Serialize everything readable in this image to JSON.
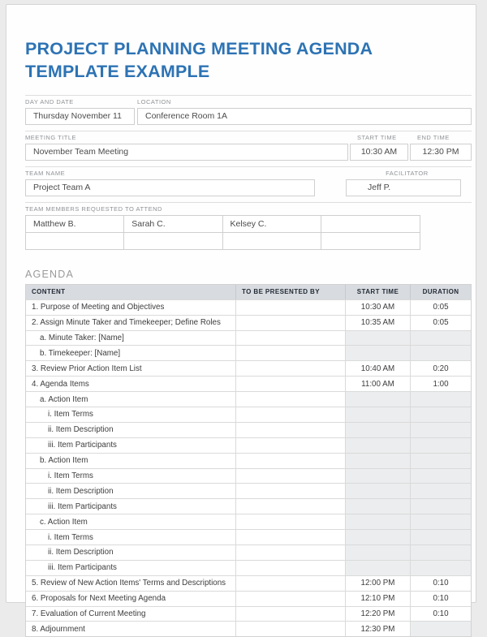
{
  "page": {
    "title_line1": "PROJECT PLANNING MEETING AGENDA",
    "title_line2": "TEMPLATE EXAMPLE",
    "accent_color": "#2d73b4",
    "header_row_color": "#d8dbe0",
    "shaded_cell_color": "#ebedee"
  },
  "fields": {
    "day_and_date": {
      "label": "DAY AND DATE",
      "value": "Thursday November 11"
    },
    "location": {
      "label": "LOCATION",
      "value": "Conference Room 1A"
    },
    "meeting_title": {
      "label": "MEETING TITLE",
      "value": "November Team Meeting"
    },
    "start_time": {
      "label": "START TIME",
      "value": "10:30 AM"
    },
    "end_time": {
      "label": "END TIME",
      "value": "12:30 PM"
    },
    "team_name": {
      "label": "TEAM NAME",
      "value": "Project Team A"
    },
    "facilitator": {
      "label": "FACILITATOR",
      "value": "Jeff P."
    },
    "team_members": {
      "label": "TEAM MEMBERS REQUESTED TO ATTEND",
      "rows": [
        [
          "Matthew B.",
          "Sarah C.",
          "Kelsey C.",
          ""
        ],
        [
          "",
          "",
          "",
          ""
        ]
      ]
    }
  },
  "agenda": {
    "section_label": "AGENDA",
    "columns": [
      "CONTENT",
      "TO BE PRESENTED BY",
      "START TIME",
      "DURATION"
    ],
    "rows": [
      {
        "content": "1. Purpose of Meeting and Objectives",
        "presenter": "",
        "start": "10:30 AM",
        "duration": "0:05",
        "indent": 0,
        "shaded": false
      },
      {
        "content": "2. Assign Minute Taker and Timekeeper; Define Roles",
        "presenter": "",
        "start": "10:35 AM",
        "duration": "0:05",
        "indent": 0,
        "shaded": false
      },
      {
        "content": "a. Minute Taker: [Name]",
        "presenter": "",
        "start": "",
        "duration": "",
        "indent": 1,
        "shaded": true
      },
      {
        "content": "b. Timekeeper: [Name]",
        "presenter": "",
        "start": "",
        "duration": "",
        "indent": 1,
        "shaded": true
      },
      {
        "content": "3. Review Prior Action Item List",
        "presenter": "",
        "start": "10:40 AM",
        "duration": "0:20",
        "indent": 0,
        "shaded": false
      },
      {
        "content": "4. Agenda Items",
        "presenter": "",
        "start": "11:00 AM",
        "duration": "1:00",
        "indent": 0,
        "shaded": false
      },
      {
        "content": "a. Action Item",
        "presenter": "",
        "start": "",
        "duration": "",
        "indent": 1,
        "shaded": true
      },
      {
        "content": "i. Item Terms",
        "presenter": "",
        "start": "",
        "duration": "",
        "indent": 2,
        "shaded": true
      },
      {
        "content": "ii. Item Description",
        "presenter": "",
        "start": "",
        "duration": "",
        "indent": 2,
        "shaded": true
      },
      {
        "content": "iii. Item Participants",
        "presenter": "",
        "start": "",
        "duration": "",
        "indent": 2,
        "shaded": true
      },
      {
        "content": "b. Action Item",
        "presenter": "",
        "start": "",
        "duration": "",
        "indent": 1,
        "shaded": true
      },
      {
        "content": "i. Item Terms",
        "presenter": "",
        "start": "",
        "duration": "",
        "indent": 2,
        "shaded": true
      },
      {
        "content": "ii. Item Description",
        "presenter": "",
        "start": "",
        "duration": "",
        "indent": 2,
        "shaded": true
      },
      {
        "content": "iii. Item Participants",
        "presenter": "",
        "start": "",
        "duration": "",
        "indent": 2,
        "shaded": true
      },
      {
        "content": "c. Action Item",
        "presenter": "",
        "start": "",
        "duration": "",
        "indent": 1,
        "shaded": true
      },
      {
        "content": "i. Item Terms",
        "presenter": "",
        "start": "",
        "duration": "",
        "indent": 2,
        "shaded": true
      },
      {
        "content": "ii. Item Description",
        "presenter": "",
        "start": "",
        "duration": "",
        "indent": 2,
        "shaded": true
      },
      {
        "content": "iii. Item Participants",
        "presenter": "",
        "start": "",
        "duration": "",
        "indent": 2,
        "shaded": true
      },
      {
        "content": "5. Review of New Action Items' Terms and Descriptions",
        "presenter": "",
        "start": "12:00 PM",
        "duration": "0:10",
        "indent": 0,
        "shaded": false
      },
      {
        "content": "6. Proposals for Next Meeting Agenda",
        "presenter": "",
        "start": "12:10 PM",
        "duration": "0:10",
        "indent": 0,
        "shaded": false
      },
      {
        "content": "7. Evaluation of Current Meeting",
        "presenter": "",
        "start": "12:20 PM",
        "duration": "0:10",
        "indent": 0,
        "shaded": false
      },
      {
        "content": "8. Adjournment",
        "presenter": "",
        "start": "12:30 PM",
        "duration": "",
        "indent": 0,
        "shaded": false,
        "duration_shaded": true
      }
    ]
  }
}
